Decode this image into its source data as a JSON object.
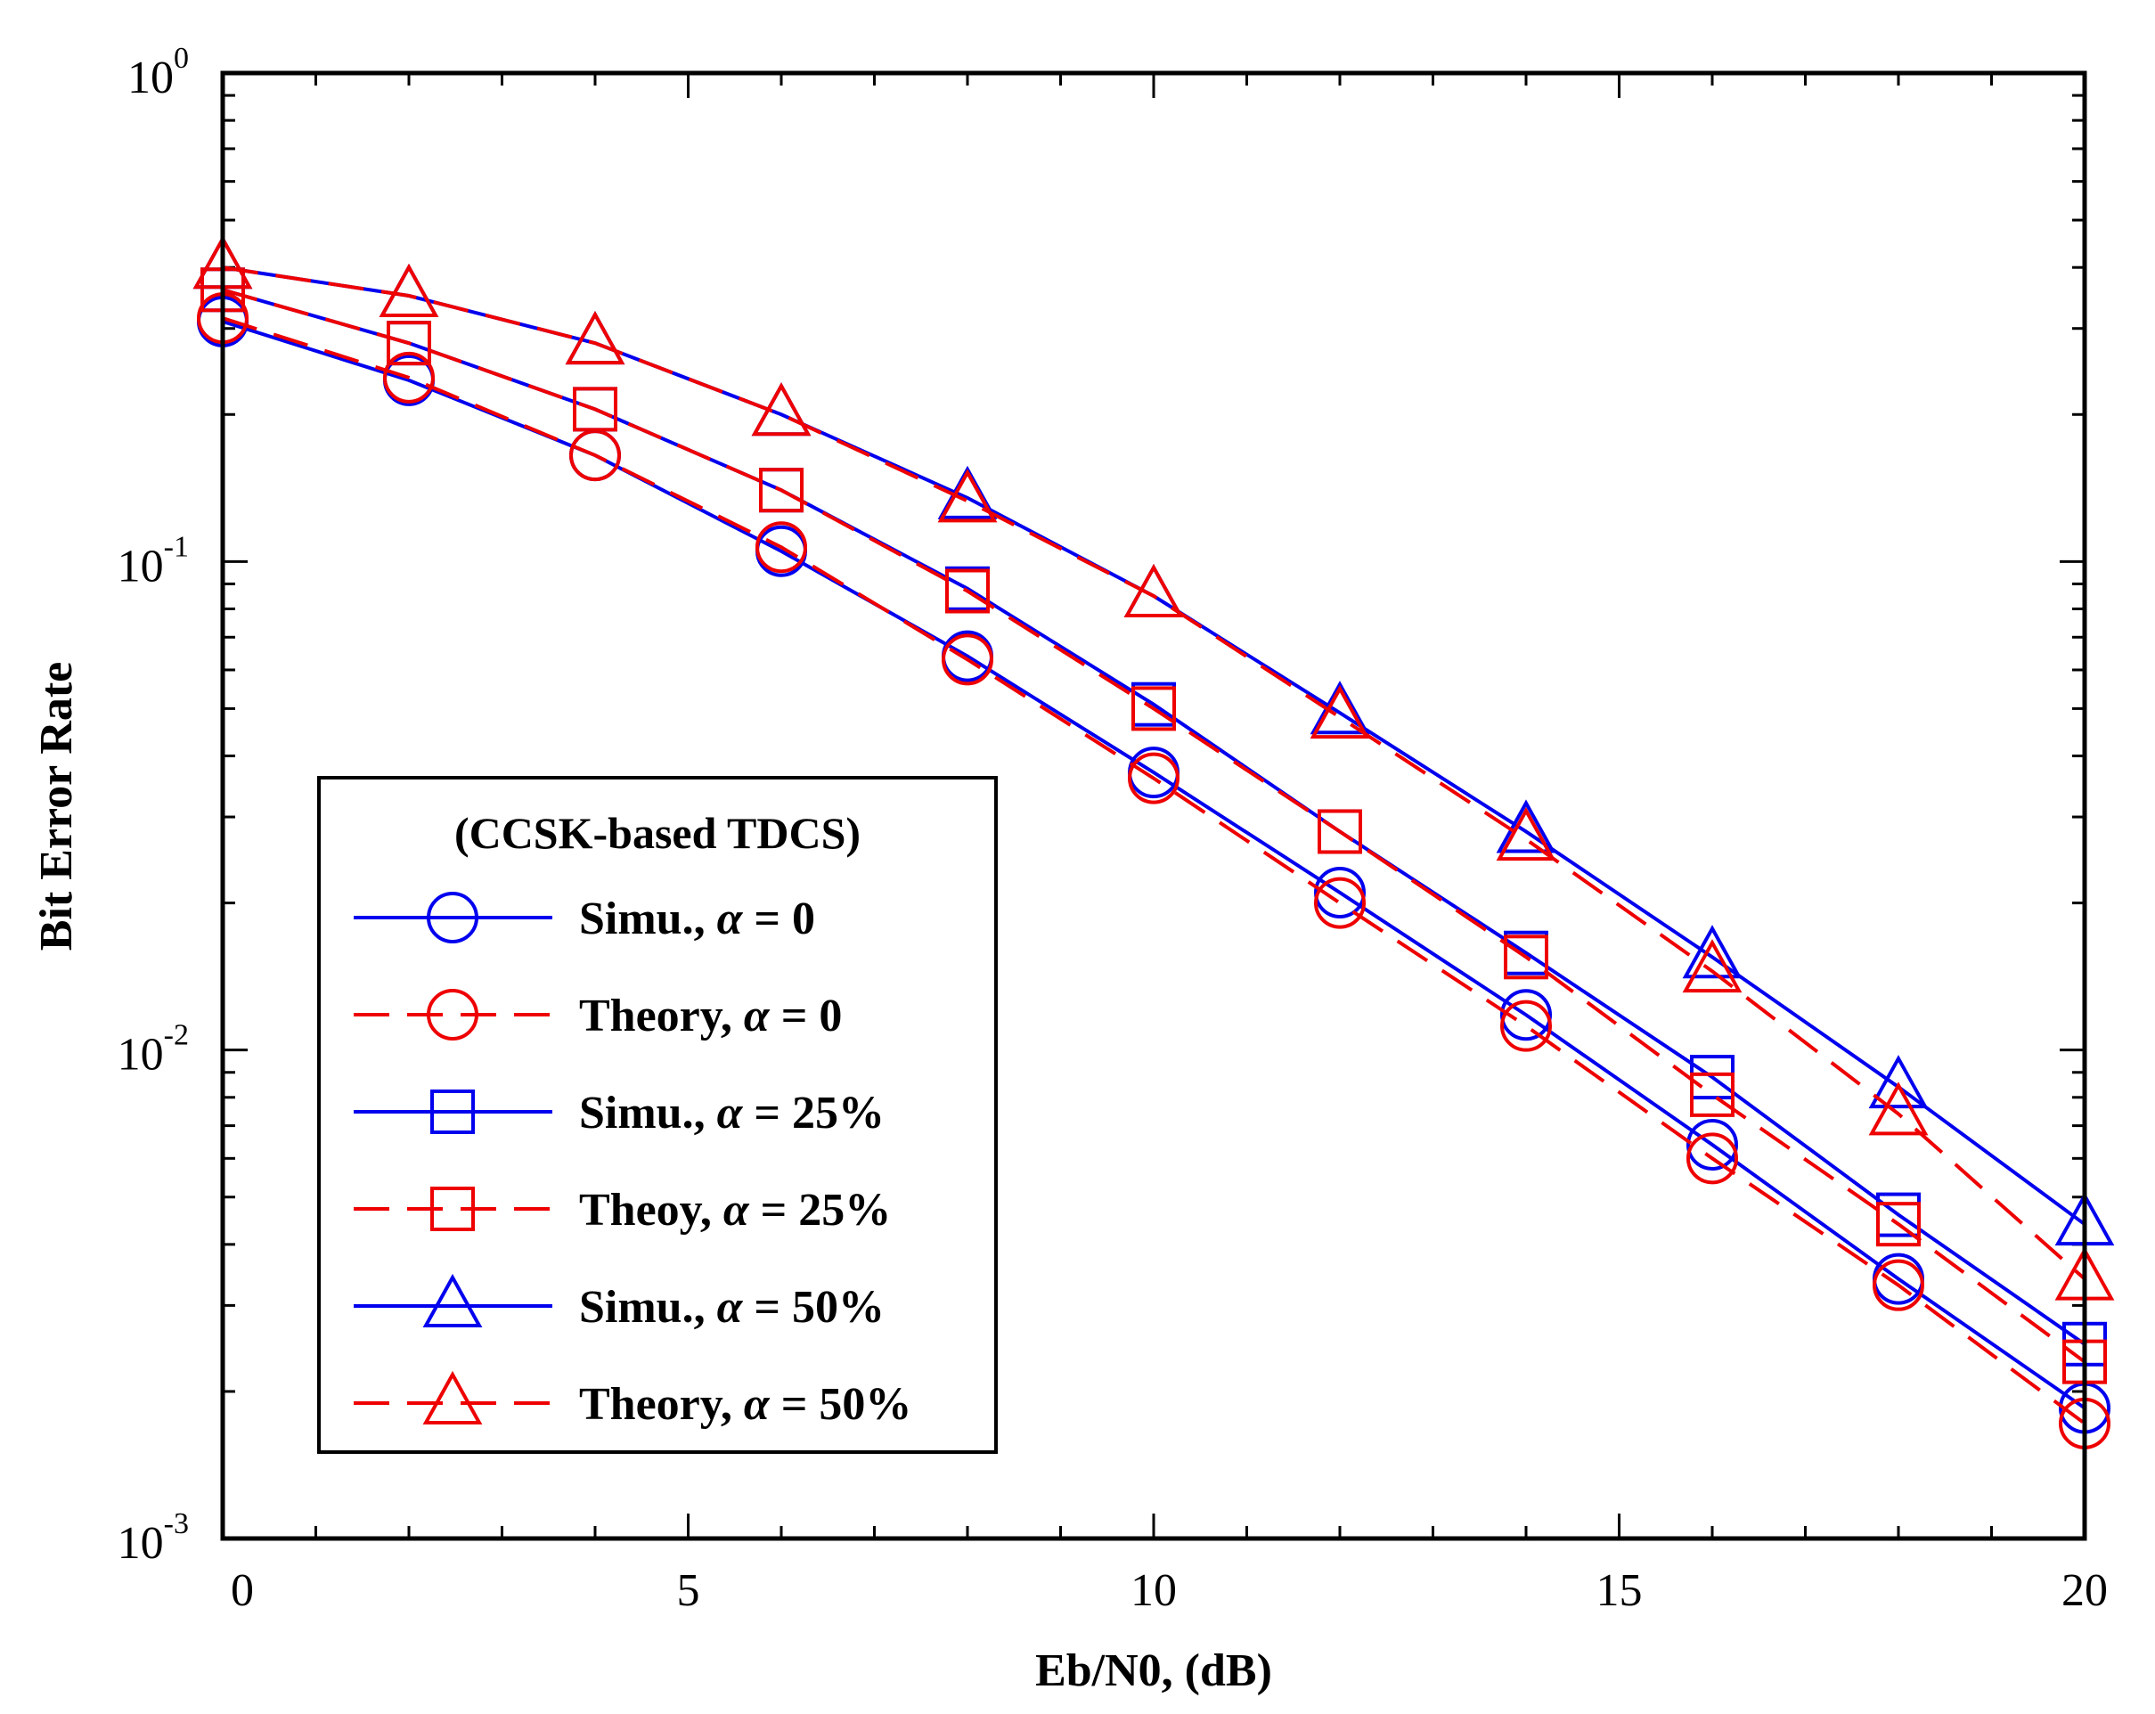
{
  "chart_data": {
    "type": "line",
    "xlabel": "Eb/N0, (dB)",
    "ylabel": "Bit Error Rate",
    "xlim": [
      0,
      20
    ],
    "ylim": [
      0.001,
      1
    ],
    "yscale": "log",
    "xticks": [
      0,
      5,
      10,
      15,
      20
    ],
    "ytick_labels": [
      {
        "value": 1,
        "base": "10",
        "exp": "0"
      },
      {
        "value": 0.1,
        "base": "10",
        "exp": "-1"
      },
      {
        "value": 0.01,
        "base": "10",
        "exp": "-2"
      },
      {
        "value": 0.001,
        "base": "10",
        "exp": "-3"
      }
    ],
    "grid": false,
    "legend": {
      "title": "(CCSK-based TDCS)",
      "placement": "lower-left"
    },
    "x": [
      0,
      2,
      4,
      6,
      8,
      10,
      12,
      14,
      16,
      18,
      20
    ],
    "series": [
      {
        "name": "Simu., α = 0",
        "prefix": "Simu., ",
        "suffix": " = 0",
        "color": "#0000ee",
        "dash": "solid",
        "marker": "circle",
        "values": [
          0.31,
          0.235,
          0.165,
          0.105,
          0.064,
          0.037,
          0.021,
          0.0118,
          0.0064,
          0.0034,
          0.00185
        ]
      },
      {
        "name": "Theory, α = 0",
        "prefix": "Theory, ",
        "suffix": " = 0",
        "color": "#ee0000",
        "dash": "dashed",
        "marker": "circle",
        "values": [
          0.315,
          0.238,
          0.165,
          0.107,
          0.063,
          0.036,
          0.02,
          0.0112,
          0.006,
          0.0033,
          0.00172
        ]
      },
      {
        "name": "Simu., α = 25%",
        "prefix": "Simu., ",
        "suffix": " = 25%",
        "color": "#0000ee",
        "dash": "solid",
        "marker": "square",
        "values": [
          0.36,
          0.28,
          0.205,
          0.14,
          0.088,
          0.051,
          0.028,
          0.0158,
          0.0088,
          0.0046,
          0.0025
        ]
      },
      {
        "name": "Theoy, α = 25%",
        "prefix": "Theoy, ",
        "suffix": " = 25%",
        "color": "#ee0000",
        "dash": "dashed",
        "marker": "square",
        "values": [
          0.36,
          0.28,
          0.205,
          0.14,
          0.087,
          0.05,
          0.028,
          0.0155,
          0.0081,
          0.0044,
          0.0023
        ]
      },
      {
        "name": "Simu., α = 50%",
        "prefix": "Simu., ",
        "suffix": " = 50%",
        "color": "#0000ee",
        "dash": "solid",
        "marker": "triangle",
        "values": [
          0.4,
          0.35,
          0.28,
          0.2,
          0.135,
          0.085,
          0.049,
          0.028,
          0.0155,
          0.0084,
          0.0044
        ]
      },
      {
        "name": "Theory, α = 50%",
        "prefix": "Theory, ",
        "suffix": " = 50%",
        "color": "#ee0000",
        "dash": "dashed",
        "marker": "triangle",
        "values": [
          0.4,
          0.35,
          0.28,
          0.2,
          0.133,
          0.085,
          0.048,
          0.027,
          0.0145,
          0.0074,
          0.0034
        ]
      }
    ]
  }
}
